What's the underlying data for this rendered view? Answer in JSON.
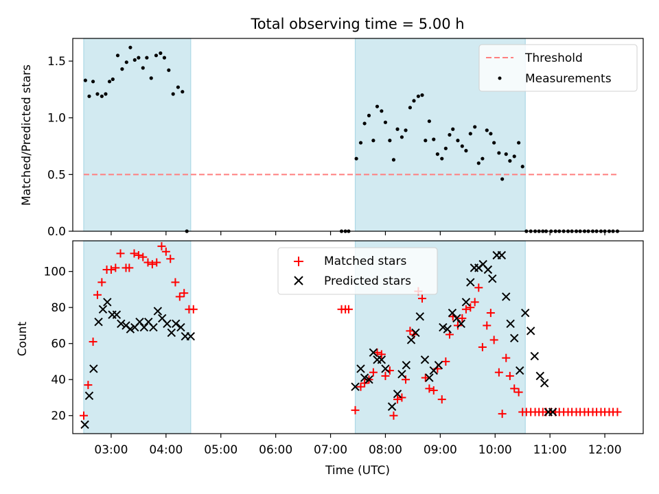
{
  "chart_data": {
    "title": "Total observing time = 5.00 h",
    "xlabel": "Time (UTC)",
    "x_ticks": [
      "03:00",
      "04:00",
      "05:00",
      "06:00",
      "07:00",
      "08:00",
      "09:00",
      "10:00",
      "11:00",
      "12:00"
    ],
    "x_tick_hours": [
      3,
      4,
      5,
      6,
      7,
      8,
      9,
      10,
      11,
      12
    ],
    "xlim_hours": [
      2.3,
      12.7
    ],
    "shaded_intervals_hours": [
      [
        2.5,
        4.45
      ],
      [
        7.45,
        10.55
      ]
    ],
    "shade_color": "#add8e6",
    "panels": [
      {
        "type": "scatter",
        "ylabel": "Matched/Predicted stars",
        "ylim": [
          0,
          1.7
        ],
        "yticks": [
          0.0,
          0.5,
          1.0,
          1.5
        ],
        "ytick_labels": [
          "0.0",
          "0.5",
          "1.0",
          "1.5"
        ],
        "legend": {
          "position": "upper-right",
          "entries": [
            "Threshold",
            "Measurements"
          ]
        },
        "threshold": {
          "name": "Threshold",
          "value": 0.5,
          "x_range": [
            2.5,
            12.25
          ],
          "color": "#ff7f7f",
          "style": "dashed"
        },
        "series": [
          {
            "name": "Measurements",
            "color": "#000000",
            "marker": "dot",
            "x": [
              2.53,
              2.6,
              2.67,
              2.75,
              2.83,
              2.9,
              2.97,
              3.03,
              3.12,
              3.2,
              3.28,
              3.35,
              3.43,
              3.5,
              3.58,
              3.65,
              3.73,
              3.82,
              3.9,
              3.97,
              4.05,
              4.13,
              4.22,
              4.3,
              4.38,
              7.2,
              7.27,
              7.33,
              7.47,
              7.55,
              7.62,
              7.7,
              7.78,
              7.85,
              7.93,
              8.0,
              8.08,
              8.15,
              8.22,
              8.3,
              8.37,
              8.45,
              8.52,
              8.6,
              8.67,
              8.73,
              8.8,
              8.88,
              8.95,
              9.03,
              9.1,
              9.17,
              9.23,
              9.32,
              9.4,
              9.47,
              9.55,
              9.63,
              9.7,
              9.77,
              9.85,
              9.92,
              9.98,
              10.07,
              10.13,
              10.2,
              10.27,
              10.35,
              10.43,
              10.5,
              10.57,
              10.65,
              10.73,
              10.8,
              10.87,
              10.93,
              11.02,
              11.1,
              11.17,
              11.25,
              11.33,
              11.4,
              11.48,
              11.55,
              11.63,
              11.7,
              11.78,
              11.85,
              11.93,
              12.0,
              12.08,
              12.15,
              12.23
            ],
            "y": [
              1.33,
              1.19,
              1.32,
              1.21,
              1.19,
              1.21,
              1.32,
              1.34,
              1.55,
              1.43,
              1.49,
              1.62,
              1.51,
              1.53,
              1.44,
              1.53,
              1.35,
              1.55,
              1.57,
              1.53,
              1.42,
              1.21,
              1.27,
              1.23,
              0.0,
              0.0,
              0.0,
              0.0,
              0.64,
              0.78,
              0.95,
              1.02,
              0.8,
              1.1,
              1.06,
              0.96,
              0.8,
              0.63,
              0.9,
              0.83,
              0.89,
              1.09,
              1.15,
              1.19,
              1.2,
              0.8,
              0.97,
              0.81,
              0.68,
              0.64,
              0.73,
              0.85,
              0.9,
              0.8,
              0.75,
              0.71,
              0.86,
              0.92,
              0.6,
              0.64,
              0.89,
              0.86,
              0.78,
              0.69,
              0.46,
              0.68,
              0.62,
              0.66,
              0.78,
              0.57,
              0.0,
              0.0,
              0.0,
              0.0,
              0.0,
              0.0,
              0.0,
              0.0,
              0.0,
              0.0,
              0.0,
              0.0,
              0.0,
              0.0,
              0.0,
              0.0,
              0.0,
              0.0,
              0.0,
              0.0,
              0.0,
              0.0,
              0.0
            ]
          }
        ]
      },
      {
        "type": "scatter",
        "ylabel": "Count",
        "ylim": [
          10,
          117
        ],
        "yticks": [
          20,
          40,
          60,
          80,
          100
        ],
        "ytick_labels": [
          "20",
          "40",
          "60",
          "80",
          "100"
        ],
        "legend": {
          "position": "upper-center",
          "entries": [
            "Matched stars",
            "Predicted stars"
          ]
        },
        "series": [
          {
            "name": "Matched stars",
            "color": "#ff0000",
            "marker": "plus",
            "x": [
              2.5,
              2.58,
              2.67,
              2.75,
              2.83,
              2.92,
              3.0,
              3.08,
              3.17,
              3.27,
              3.33,
              3.42,
              3.5,
              3.58,
              3.67,
              3.75,
              3.83,
              3.92,
              4.0,
              4.08,
              4.17,
              4.25,
              4.33,
              4.42,
              4.5,
              7.2,
              7.27,
              7.33,
              7.45,
              7.55,
              7.62,
              7.7,
              7.78,
              7.85,
              7.93,
              8.0,
              8.08,
              8.15,
              8.22,
              8.3,
              8.37,
              8.45,
              8.52,
              8.6,
              8.67,
              8.73,
              8.8,
              8.88,
              8.95,
              9.03,
              9.1,
              9.17,
              9.23,
              9.32,
              9.4,
              9.47,
              9.55,
              9.63,
              9.7,
              9.77,
              9.85,
              9.92,
              9.98,
              10.07,
              10.13,
              10.2,
              10.27,
              10.35,
              10.43,
              10.5,
              10.57,
              10.65,
              10.73,
              10.8,
              10.87,
              10.93,
              11.02,
              11.1,
              11.17,
              11.25,
              11.33,
              11.4,
              11.48,
              11.55,
              11.63,
              11.7,
              11.78,
              11.85,
              11.93,
              12.0,
              12.08,
              12.15,
              12.23
            ],
            "y": [
              20,
              37,
              61,
              87,
              94,
              101,
              101,
              102,
              110,
              102,
              102,
              110,
              109,
              108,
              105,
              104,
              105,
              114,
              111,
              107,
              94,
              86,
              88,
              79,
              79,
              79,
              79,
              79,
              23,
              36,
              38,
              40,
              44,
              55,
              54,
              42,
              45,
              20,
              29,
              30,
              40,
              67,
              65,
              89,
              85,
              41,
              35,
              34,
              46,
              29,
              50,
              65,
              75,
              70,
              74,
              79,
              80,
              83,
              91,
              58,
              70,
              77,
              62,
              44,
              21,
              52,
              42,
              35,
              33,
              22,
              22,
              22,
              22,
              22,
              22,
              22,
              22,
              22,
              22,
              22,
              22,
              22,
              22,
              22,
              22,
              22,
              22,
              22,
              22,
              22,
              22,
              22,
              22
            ]
          },
          {
            "name": "Predicted stars",
            "color": "#000000",
            "marker": "cross",
            "x": [
              2.52,
              2.6,
              2.68,
              2.77,
              2.85,
              2.93,
              3.02,
              3.1,
              3.18,
              3.27,
              3.35,
              3.43,
              3.52,
              3.6,
              3.68,
              3.77,
              3.85,
              3.93,
              4.02,
              4.1,
              4.18,
              4.27,
              4.35,
              4.45,
              7.45,
              7.55,
              7.62,
              7.7,
              7.78,
              7.85,
              7.93,
              8.0,
              8.12,
              8.22,
              8.3,
              8.38,
              8.47,
              8.55,
              8.63,
              8.72,
              8.8,
              8.88,
              8.97,
              9.05,
              9.13,
              9.22,
              9.3,
              9.38,
              9.47,
              9.55,
              9.62,
              9.7,
              9.78,
              9.87,
              9.95,
              10.03,
              10.12,
              10.2,
              10.28,
              10.35,
              10.45,
              10.55,
              10.65,
              10.72,
              10.82,
              10.9,
              10.97,
              11.05
            ],
            "y": [
              15,
              31,
              46,
              72,
              79,
              83,
              76,
              76,
              71,
              70,
              68,
              69,
              72,
              69,
              72,
              69,
              78,
              74,
              71,
              66,
              71,
              69,
              64,
              64,
              36,
              46,
              41,
              40,
              55,
              51,
              51,
              46,
              25,
              32,
              43,
              48,
              62,
              66,
              75,
              51,
              41,
              45,
              48,
              69,
              68,
              77,
              74,
              71,
              83,
              94,
              102,
              102,
              104,
              101,
              96,
              109,
              109,
              86,
              71,
              63,
              45,
              77,
              67,
              53,
              42,
              38,
              22,
              22
            ]
          }
        ]
      }
    ]
  }
}
